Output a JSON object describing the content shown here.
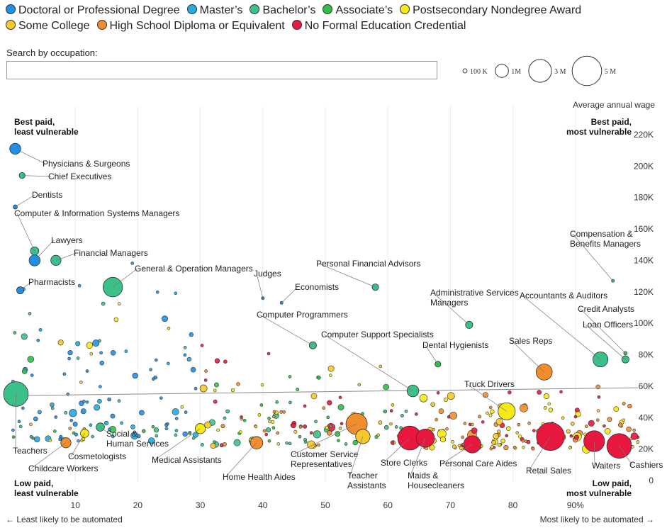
{
  "legend": [
    {
      "label": "Doctoral or Professional Degree",
      "color": "#1f8fe8"
    },
    {
      "label": "Master’s",
      "color": "#27a8e0"
    },
    {
      "label": "Bachelor’s",
      "color": "#3cc08a"
    },
    {
      "label": "Associate’s",
      "color": "#2fbf4a"
    },
    {
      "label": "Postsecondary Nondegree Award",
      "color": "#f5ea15"
    },
    {
      "label": "Some College",
      "color": "#f7c82b"
    },
    {
      "label": "High School Diploma or Equivalent",
      "color": "#f28d2e"
    },
    {
      "label": "No Formal Education Credential",
      "color": "#e8173f"
    }
  ],
  "search": {
    "label": "Search by occupation:",
    "value": "",
    "placeholder": ""
  },
  "size_legend": [
    {
      "label": "100 K",
      "value": 100000
    },
    {
      "label": "1M",
      "value": 1000000
    },
    {
      "label": "3 M",
      "value": 3000000
    },
    {
      "label": "5 M",
      "value": 5000000
    }
  ],
  "axis_notes": {
    "left": "← Least likely to be automated",
    "right": "Most likely to be automated →",
    "wage": "Average annual wage"
  },
  "corners": {
    "top_left": [
      "Best paid,",
      "least vulnerable"
    ],
    "top_right": [
      "Best paid,",
      "most vulnerable"
    ],
    "bottom_left": [
      "Low paid,",
      "least vulnerable"
    ],
    "bottom_right": [
      "Low paid,",
      "most vulnerable"
    ]
  },
  "chart_data": {
    "type": "scatter",
    "x_range": [
      0,
      100
    ],
    "y_range": [
      0,
      230000
    ],
    "x_ticks": [
      10,
      20,
      30,
      40,
      50,
      60,
      70,
      80,
      90
    ],
    "x_tick_labels": [
      "10",
      "20",
      "30",
      "40",
      "50",
      "60",
      "70",
      "80",
      "90%"
    ],
    "y_ticks": [
      0,
      20000,
      40000,
      60000,
      80000,
      100000,
      120000,
      140000,
      160000,
      180000,
      200000,
      220000
    ],
    "y_tick_labels": [
      "0",
      "20K",
      "40K",
      "60K",
      "80K",
      "100K",
      "120K",
      "140K",
      "160K",
      "180K",
      "200K",
      "220K"
    ],
    "trend": [
      [
        0,
        54000
      ],
      [
        100,
        59000
      ]
    ],
    "grid": "vertical",
    "labeled_points": [
      {
        "name": "Physicians & Surgeons",
        "x": 0.4,
        "y": 211000,
        "emp": 700000,
        "edu": 0
      },
      {
        "name": "Chief Executives",
        "x": 1.5,
        "y": 194000,
        "emp": 200000,
        "edu": 2
      },
      {
        "name": "Dentists",
        "x": 0.4,
        "y": 174000,
        "emp": 100000,
        "edu": 0
      },
      {
        "name": "Computer & Information Systems Managers",
        "x": 3.5,
        "y": 146000,
        "emp": 400000,
        "edu": 2
      },
      {
        "name": "Lawyers",
        "x": 3.5,
        "y": 140000,
        "emp": 700000,
        "edu": 0
      },
      {
        "name": "Financial Managers",
        "x": 6.9,
        "y": 140000,
        "emp": 600000,
        "edu": 2
      },
      {
        "name": "General & Operation Managers",
        "x": 16,
        "y": 123000,
        "emp": 2200000,
        "edu": 2
      },
      {
        "name": "Pharmacists",
        "x": 1.2,
        "y": 121000,
        "emp": 300000,
        "edu": 0
      },
      {
        "name": "Judges",
        "x": 40,
        "y": 116000,
        "emp": 30000,
        "edu": 0
      },
      {
        "name": "Economists",
        "x": 43,
        "y": 113000,
        "emp": 20000,
        "edu": 1
      },
      {
        "name": "Personal Financial Advisors",
        "x": 58,
        "y": 123000,
        "emp": 250000,
        "edu": 2
      },
      {
        "name": "Compensation & Benefits Managers",
        "x": 96,
        "y": 127000,
        "emp": 20000,
        "edu": 2
      },
      {
        "name": "Administrative Services Managers",
        "x": 73,
        "y": 99000,
        "emp": 300000,
        "edu": 2
      },
      {
        "name": "Accountants & Auditors",
        "x": 94,
        "y": 77000,
        "emp": 1300000,
        "edu": 2
      },
      {
        "name": "Credit Analysts",
        "x": 98,
        "y": 81000,
        "emp": 70000,
        "edu": 2
      },
      {
        "name": "Loan Officers",
        "x": 98,
        "y": 77000,
        "emp": 300000,
        "edu": 2
      },
      {
        "name": "Computer Programmers",
        "x": 48,
        "y": 86000,
        "emp": 300000,
        "edu": 2
      },
      {
        "name": "Computer Support Specialists",
        "x": 64,
        "y": 57000,
        "emp": 800000,
        "edu": 2
      },
      {
        "name": "Dental Hygienists",
        "x": 68,
        "y": 74000,
        "emp": 200000,
        "edu": 3
      },
      {
        "name": "Sales Reps",
        "x": 85,
        "y": 69000,
        "emp": 1500000,
        "edu": 6
      },
      {
        "name": "Truck Drivers",
        "x": 79,
        "y": 44000,
        "emp": 1700000,
        "edu": 4
      },
      {
        "name": "Teachers",
        "x": 0.5,
        "y": 55000,
        "emp": 3500000,
        "edu": 2
      },
      {
        "name": "Childcare Workers",
        "x": 8.5,
        "y": 24000,
        "emp": 600000,
        "edu": 6
      },
      {
        "name": "Cosmetologists",
        "x": 11.5,
        "y": 30000,
        "emp": 400000,
        "edu": 4
      },
      {
        "name": "Social & Human Services",
        "x": 14,
        "y": 34000,
        "emp": 400000,
        "edu": 2
      },
      {
        "name": "Medical Assistants",
        "x": 30,
        "y": 33000,
        "emp": 600000,
        "edu": 4
      },
      {
        "name": "Home Health Aides",
        "x": 39,
        "y": 24000,
        "emp": 900000,
        "edu": 6
      },
      {
        "name": "Customer Service Representatives",
        "x": 55,
        "y": 36000,
        "emp": 2600000,
        "edu": 6
      },
      {
        "name": "Teacher Assistants",
        "x": 56,
        "y": 28000,
        "emp": 1200000,
        "edu": 5
      },
      {
        "name": "Store Clerks",
        "x": 63.5,
        "y": 27000,
        "emp": 3300000,
        "edu": 7
      },
      {
        "name": "Maids & Housecleaners",
        "x": 66,
        "y": 27000,
        "emp": 1900000,
        "edu": 7
      },
      {
        "name": "Personal Care Aides",
        "x": 73.5,
        "y": 23000,
        "emp": 1700000,
        "edu": 7
      },
      {
        "name": "Retail Sales",
        "x": 86,
        "y": 28000,
        "emp": 4500000,
        "edu": 7
      },
      {
        "name": "Waiters",
        "x": 93,
        "y": 25000,
        "emp": 2500000,
        "edu": 7
      },
      {
        "name": "Cashiers",
        "x": 97,
        "y": 22000,
        "emp": 3500000,
        "edu": 7
      }
    ]
  }
}
